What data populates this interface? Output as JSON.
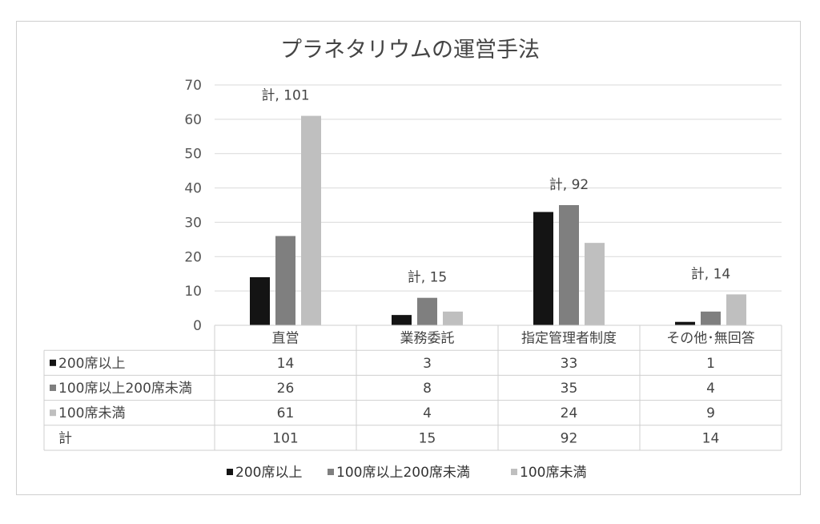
{
  "chart_data": {
    "type": "bar",
    "title": "プラネタリウムの運営手法",
    "categories": [
      "直営",
      "業務委託",
      "指定管理者制度",
      "その他･無回答"
    ],
    "series": [
      {
        "name": "200席以上",
        "values": [
          14,
          3,
          33,
          1
        ],
        "color": "#141414"
      },
      {
        "name": "100席以上200席未満",
        "values": [
          26,
          8,
          35,
          4
        ],
        "color": "#7f7f7f"
      },
      {
        "name": "100席未満",
        "values": [
          61,
          4,
          24,
          9
        ],
        "color": "#bfbfbf"
      }
    ],
    "totals_label": "計",
    "totals": [
      101,
      15,
      92,
      14
    ],
    "total_annotations": [
      "計, 101",
      "計, 15",
      "計, 92",
      "計, 14"
    ],
    "ylim": [
      0,
      70
    ],
    "yticks": [
      0,
      10,
      20,
      30,
      40,
      50,
      60,
      70
    ],
    "grid": true,
    "legend_position": "bottom",
    "data_table": true
  }
}
